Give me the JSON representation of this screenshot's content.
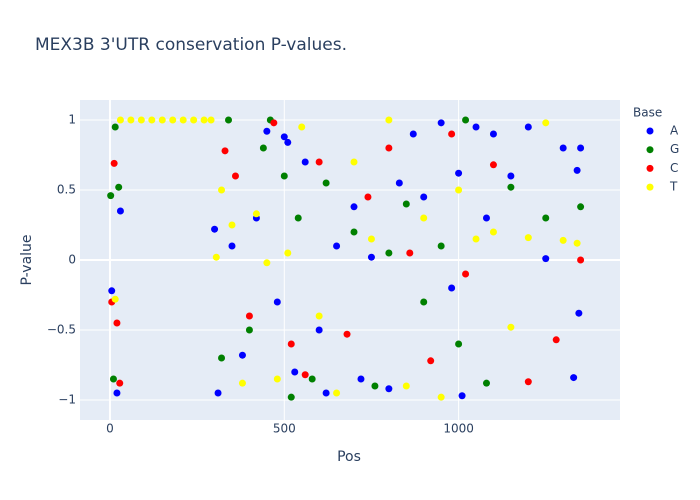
{
  "chart_data": {
    "type": "scatter",
    "title": "MEX3B 3'UTR conservation P-values.",
    "x_label": "Pos",
    "y_label": "P-value",
    "legend_title": "Base",
    "legend_position": "right",
    "xlim": [
      -86,
      1463
    ],
    "ylim": [
      -1.143,
      1.143
    ],
    "xticks": [
      0,
      500,
      1000
    ],
    "yticks": [
      {
        "value": -1,
        "label": "−1"
      },
      {
        "value": -0.5,
        "label": "−0.5"
      },
      0,
      0.5,
      1
    ],
    "grid": true,
    "series": [
      {
        "name": "A",
        "color": "#0000ff",
        "x": [
          5,
          20,
          30,
          300,
          310,
          350,
          380,
          420,
          450,
          480,
          500,
          510,
          530,
          560,
          600,
          620,
          650,
          700,
          720,
          750,
          800,
          830,
          870,
          900,
          950,
          980,
          1000,
          1010,
          1050,
          1080,
          1100,
          1150,
          1200,
          1250,
          1300,
          1330,
          1340,
          1345,
          1350
        ],
        "y": [
          -0.22,
          -0.95,
          0.35,
          0.22,
          -0.95,
          0.1,
          -0.68,
          0.3,
          0.92,
          -0.3,
          0.88,
          0.84,
          -0.8,
          0.7,
          -0.5,
          -0.95,
          0.1,
          0.38,
          -0.85,
          0.02,
          -0.92,
          0.55,
          0.9,
          0.45,
          0.98,
          -0.2,
          0.62,
          -0.97,
          0.95,
          0.3,
          0.9,
          0.6,
          0.95,
          0.01,
          0.8,
          -0.84,
          0.64,
          -0.38,
          0.8
        ]
      },
      {
        "name": "G",
        "color": "#008000",
        "x": [
          2,
          10,
          15,
          25,
          320,
          340,
          400,
          440,
          460,
          500,
          520,
          540,
          580,
          620,
          700,
          760,
          800,
          850,
          900,
          950,
          1000,
          1020,
          1080,
          1150,
          1250,
          1350
        ],
        "y": [
          0.46,
          -0.85,
          0.95,
          0.52,
          -0.7,
          1.0,
          -0.5,
          0.8,
          1.0,
          0.6,
          -0.98,
          0.3,
          -0.85,
          0.55,
          0.2,
          -0.9,
          0.05,
          0.4,
          -0.3,
          0.1,
          -0.6,
          1.0,
          -0.88,
          0.52,
          0.3,
          0.38
        ]
      },
      {
        "name": "C",
        "color": "#ff0000",
        "x": [
          5,
          12,
          20,
          28,
          330,
          360,
          400,
          470,
          520,
          560,
          600,
          680,
          740,
          800,
          860,
          920,
          980,
          1020,
          1100,
          1200,
          1280,
          1350
        ],
        "y": [
          -0.3,
          0.69,
          -0.45,
          -0.88,
          0.78,
          0.6,
          -0.4,
          0.98,
          -0.6,
          -0.82,
          0.7,
          -0.53,
          0.45,
          0.8,
          0.05,
          -0.72,
          0.9,
          -0.1,
          0.68,
          -0.87,
          -0.57,
          0.0
        ]
      },
      {
        "name": "T",
        "color": "#ffff00",
        "x": [
          15,
          30,
          60,
          90,
          120,
          150,
          180,
          210,
          240,
          270,
          290,
          305,
          320,
          350,
          380,
          420,
          450,
          480,
          510,
          550,
          600,
          650,
          700,
          750,
          800,
          850,
          900,
          950,
          1000,
          1050,
          1100,
          1150,
          1200,
          1250,
          1300,
          1340
        ],
        "y": [
          -0.28,
          1,
          1,
          1,
          1,
          1,
          1,
          1,
          1,
          1,
          1,
          0.02,
          0.5,
          0.25,
          -0.88,
          0.33,
          -0.02,
          -0.85,
          0.05,
          0.95,
          -0.4,
          -0.95,
          0.7,
          0.15,
          1.0,
          -0.9,
          0.3,
          -0.98,
          0.5,
          0.15,
          0.2,
          -0.48,
          0.16,
          0.98,
          0.14,
          0.12
        ]
      }
    ]
  }
}
